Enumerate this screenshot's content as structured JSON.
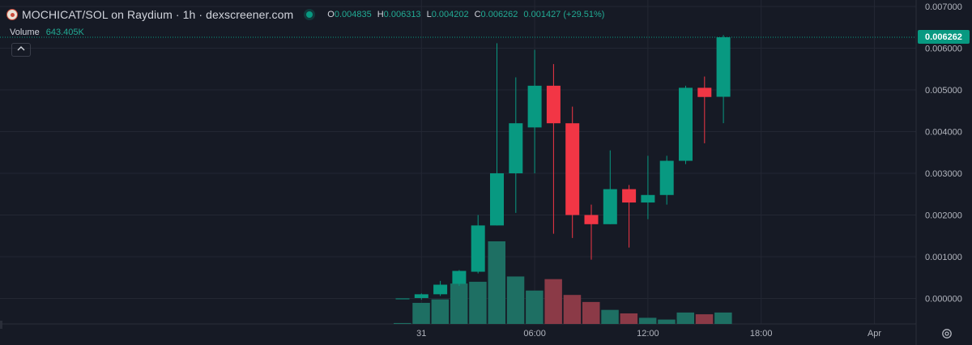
{
  "header": {
    "title": "MOCHICAT/SOL on Raydium · 1h · dexscreener.com",
    "ohlc": [
      {
        "key": "O",
        "value": "0.004835"
      },
      {
        "key": "H",
        "value": "0.006313"
      },
      {
        "key": "L",
        "value": "0.004202"
      },
      {
        "key": "C",
        "value": "0.006262"
      }
    ],
    "change": "0.001427 (+29.51%)"
  },
  "volume": {
    "label": "Volume",
    "value": "643.405K"
  },
  "current_price_label": "0.006262",
  "colors": {
    "up": "#089981",
    "down": "#f23645",
    "up_volume": "#1e6f63",
    "down_volume": "#8b3a47",
    "background": "#161a25",
    "grid": "#232733"
  },
  "icons": {
    "collapse": "chevron-up-icon",
    "settings": "gear-icon",
    "logo": "token-logo-icon",
    "status": "live-dot-icon"
  },
  "chart_data": {
    "type": "candlestick",
    "y_ticks": [
      "0.007000",
      "0.006000",
      "0.005000",
      "0.004000",
      "0.003000",
      "0.002000",
      "0.001000",
      "0.000000"
    ],
    "ylim": [
      -0.0007,
      0.007
    ],
    "x_ticks": [
      "31",
      "06:00",
      "12:00",
      "18:00",
      "Apr"
    ],
    "x_tick_index": [
      1,
      7,
      13,
      19,
      25
    ],
    "grid": true,
    "current_price": 0.006262,
    "candles": [
      {
        "o": 0.0,
        "h": 0.0,
        "l": 0.0,
        "c": 0.0,
        "v": 5
      },
      {
        "o": 1e-05,
        "h": 0.00012,
        "l": -3e-05,
        "c": 0.0001,
        "v": 120
      },
      {
        "o": 0.0001,
        "h": 0.00042,
        "l": 6e-05,
        "c": 0.00033,
        "v": 140
      },
      {
        "o": 0.00035,
        "h": 0.00068,
        "l": 0.0003,
        "c": 0.00066,
        "v": 230
      },
      {
        "o": 0.00064,
        "h": 0.002,
        "l": 0.0006,
        "c": 0.00175,
        "v": 240
      },
      {
        "o": 0.00175,
        "h": 0.00612,
        "l": 0.00175,
        "c": 0.003,
        "v": 470
      },
      {
        "o": 0.003,
        "h": 0.0053,
        "l": 0.00205,
        "c": 0.0042,
        "v": 270
      },
      {
        "o": 0.0041,
        "h": 0.00596,
        "l": 0.003,
        "c": 0.0051,
        "v": 190
      },
      {
        "o": 0.0051,
        "h": 0.00562,
        "l": 0.00155,
        "c": 0.0042,
        "v": 255
      },
      {
        "o": 0.0042,
        "h": 0.0046,
        "l": 0.00145,
        "c": 0.002,
        "v": 165
      },
      {
        "o": 0.002,
        "h": 0.00225,
        "l": 0.00093,
        "c": 0.00178,
        "v": 125
      },
      {
        "o": 0.00178,
        "h": 0.00355,
        "l": 0.00178,
        "c": 0.00262,
        "v": 80
      },
      {
        "o": 0.00262,
        "h": 0.00272,
        "l": 0.00122,
        "c": 0.0023,
        "v": 60
      },
      {
        "o": 0.0023,
        "h": 0.00342,
        "l": 0.0019,
        "c": 0.00248,
        "v": 35
      },
      {
        "o": 0.00248,
        "h": 0.00342,
        "l": 0.00225,
        "c": 0.0033,
        "v": 25
      },
      {
        "o": 0.0033,
        "h": 0.0051,
        "l": 0.00322,
        "c": 0.00505,
        "v": 65
      },
      {
        "o": 0.00505,
        "h": 0.00532,
        "l": 0.00372,
        "c": 0.00483,
        "v": 55
      },
      {
        "o": 0.004835,
        "h": 0.006313,
        "l": 0.004202,
        "c": 0.006262,
        "v": 65
      }
    ]
  }
}
